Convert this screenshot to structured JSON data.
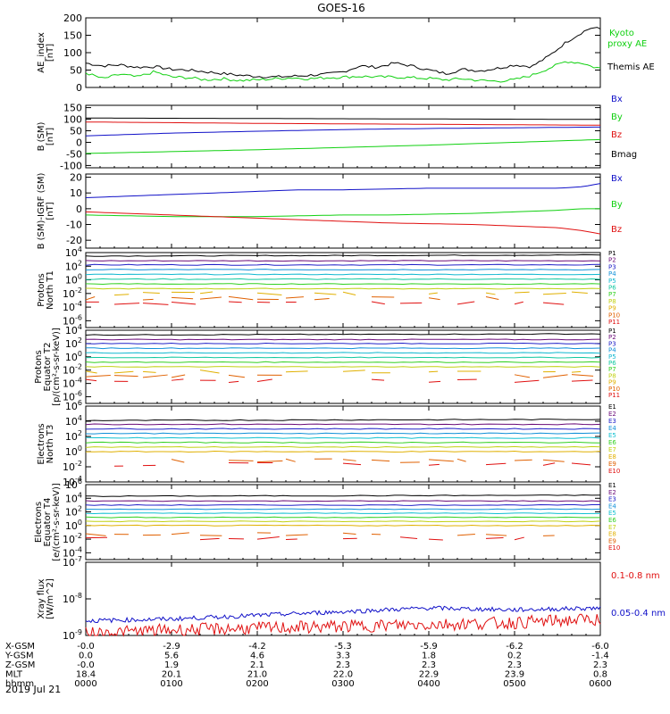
{
  "figure": {
    "title": "GOES-16",
    "date": "2019 Jul 21"
  },
  "colors": {
    "black": "#000000",
    "blue": "#1010c8",
    "green": "#10d010",
    "red": "#e01010",
    "p_colors": [
      "#000000",
      "#6a0a78",
      "#2020c8",
      "#1090d8",
      "#10b8d0",
      "#10c8a0",
      "#30d020",
      "#c0d010",
      "#e0b000",
      "#e06000",
      "#e01010"
    ],
    "e_colors": [
      "#000000",
      "#6a0a78",
      "#2020c8",
      "#1090d8",
      "#10c0d0",
      "#30d020",
      "#c0d010",
      "#e0b000",
      "#e06000",
      "#e01010"
    ]
  },
  "x_axis": {
    "rows": [
      {
        "label": "X-GSM",
        "values": [
          "-0.0",
          "-2.9",
          "-4.2",
          "-5.3",
          "-5.9",
          "-6.2",
          "-6.0"
        ]
      },
      {
        "label": "Y-GSM",
        "values": [
          "0.0",
          "5.6",
          "4.6",
          "3.3",
          "1.8",
          "0.2",
          "-1.4"
        ]
      },
      {
        "label": "Z-GSM",
        "values": [
          "-0.0",
          "1.9",
          "2.1",
          "2.3",
          "2.3",
          "2.3",
          "2.3"
        ]
      },
      {
        "label": "MLT",
        "values": [
          "18.4",
          "20.1",
          "21.0",
          "22.0",
          "22.9",
          "23.9",
          "0.8"
        ]
      },
      {
        "label": "hhmm",
        "values": [
          "0000",
          "0100",
          "0200",
          "0300",
          "0400",
          "0500",
          "0600"
        ]
      }
    ]
  },
  "chart_data": [
    {
      "type": "line",
      "ylabel": "AE_index [nT]",
      "yscale": "linear",
      "ylim": [
        0,
        200
      ],
      "yticks": [
        "0",
        "50",
        "100",
        "150",
        "200"
      ],
      "xlim": [
        0,
        6
      ],
      "legend": [
        "Kyoto proxy AE",
        "Themis AE"
      ],
      "series": [
        {
          "name": "Themis AE",
          "color_key": "black",
          "x": [
            0,
            0.2,
            0.4,
            0.6,
            0.8,
            1.0,
            1.2,
            1.4,
            1.6,
            1.8,
            2.0,
            2.2,
            2.4,
            2.6,
            2.8,
            3.0,
            3.2,
            3.4,
            3.6,
            3.8,
            4.0,
            4.2,
            4.4,
            4.6,
            4.8,
            5.0,
            5.2,
            5.4,
            5.6,
            5.8,
            5.9,
            6.0
          ],
          "values": [
            70,
            62,
            65,
            58,
            60,
            52,
            50,
            45,
            40,
            35,
            32,
            30,
            32,
            35,
            38,
            45,
            62,
            58,
            70,
            62,
            50,
            40,
            52,
            48,
            55,
            65,
            60,
            90,
            130,
            160,
            172,
            168
          ]
        },
        {
          "name": "Kyoto proxy AE",
          "color_key": "green",
          "x": [
            0,
            0.2,
            0.4,
            0.6,
            0.8,
            1.0,
            1.2,
            1.4,
            1.6,
            1.8,
            2.0,
            2.2,
            2.4,
            2.6,
            2.8,
            3.0,
            3.2,
            3.4,
            3.6,
            3.8,
            4.0,
            4.2,
            4.4,
            4.6,
            4.8,
            5.0,
            5.2,
            5.4,
            5.6,
            5.8,
            5.9,
            6.0
          ],
          "values": [
            42,
            25,
            38,
            30,
            45,
            30,
            28,
            22,
            25,
            20,
            22,
            25,
            28,
            25,
            28,
            30,
            32,
            30,
            30,
            28,
            26,
            22,
            25,
            20,
            18,
            22,
            35,
            55,
            75,
            70,
            60,
            55
          ]
        }
      ]
    },
    {
      "type": "line",
      "ylabel": "B (SM) [nT]",
      "yscale": "linear",
      "ylim": [
        -110,
        160
      ],
      "yticks": [
        "-100",
        "-50",
        "0",
        "50",
        "100",
        "150"
      ],
      "xlim": [
        0,
        6
      ],
      "legend": [
        "Bx",
        "By",
        "Bz",
        "Bmag"
      ],
      "series": [
        {
          "name": "Bmag",
          "color_key": "black",
          "x": [
            0,
            1,
            2,
            3,
            4,
            5,
            6
          ],
          "values": [
            105,
            104,
            103,
            102,
            101,
            100,
            99
          ]
        },
        {
          "name": "Bz",
          "color_key": "red",
          "x": [
            0,
            1,
            2,
            3,
            4,
            5,
            6
          ],
          "values": [
            88,
            85,
            82,
            80,
            78,
            76,
            74
          ]
        },
        {
          "name": "Bx",
          "color_key": "blue",
          "x": [
            0,
            1,
            2,
            3,
            4,
            5,
            6
          ],
          "values": [
            28,
            40,
            48,
            55,
            60,
            63,
            66
          ]
        },
        {
          "name": "By",
          "color_key": "green",
          "x": [
            0,
            1,
            2,
            3,
            4,
            5,
            6
          ],
          "values": [
            -48,
            -40,
            -32,
            -22,
            -12,
            0,
            12
          ]
        }
      ]
    },
    {
      "type": "line",
      "ylabel": "B (SM)-IGRF (SM) [nT]",
      "yscale": "linear",
      "ylim": [
        -25,
        22
      ],
      "yticks": [
        "-20",
        "-10",
        "0",
        "10",
        "20"
      ],
      "xlim": [
        0,
        6
      ],
      "legend": [
        "Bx",
        "By",
        "Bz"
      ],
      "series": [
        {
          "name": "Bx",
          "color_key": "blue",
          "x": [
            0,
            0.5,
            1,
            1.5,
            2,
            2.5,
            3,
            3.5,
            4,
            4.5,
            5,
            5.5,
            5.8,
            6
          ],
          "values": [
            7,
            8,
            9,
            10,
            11,
            12,
            12,
            12.5,
            13,
            13,
            13,
            13,
            14,
            16
          ]
        },
        {
          "name": "By",
          "color_key": "green",
          "x": [
            0,
            0.5,
            1,
            1.5,
            2,
            2.5,
            3,
            3.5,
            4,
            4.5,
            5,
            5.5,
            5.8,
            6
          ],
          "values": [
            -4,
            -4.5,
            -5,
            -5,
            -5,
            -4.5,
            -4,
            -4,
            -3.5,
            -3,
            -2,
            -1,
            0,
            0
          ]
        },
        {
          "name": "Bz",
          "color_key": "red",
          "x": [
            0,
            0.5,
            1,
            1.5,
            2,
            2.5,
            3,
            3.5,
            4,
            4.5,
            5,
            5.5,
            5.8,
            6
          ],
          "values": [
            -2,
            -3,
            -4,
            -5,
            -6,
            -7,
            -8,
            -9,
            -9.5,
            -10,
            -11,
            -12,
            -14,
            -16
          ]
        }
      ]
    },
    {
      "type": "line",
      "ylabel": "Protons North T1",
      "yscale": "log",
      "ylim_exp": [
        -7,
        4
      ],
      "ytick_exps": [
        -6,
        -4,
        -2,
        0,
        2,
        4
      ],
      "xlim": [
        0,
        6
      ],
      "legend": [
        "P1",
        "P2",
        "P3",
        "P4",
        "P5",
        "P6",
        "P7",
        "P8",
        "P9",
        "P10",
        "P11"
      ],
      "levels_exp": [
        3.5,
        2.8,
        2.2,
        1.5,
        0.8,
        0.1,
        -0.6,
        -1.3,
        -2.0,
        -2.7,
        -3.4
      ],
      "dashed_from": 8
    },
    {
      "type": "line",
      "ylabel": "Protons Equator T2 [p/(cm²-s-sr-keV)]",
      "yscale": "log",
      "ylim_exp": [
        -7,
        4
      ],
      "ytick_exps": [
        -6,
        -4,
        -2,
        0,
        2,
        4
      ],
      "xlim": [
        0,
        6
      ],
      "legend": [
        "P1",
        "P2",
        "P3",
        "P4",
        "P5",
        "P6",
        "P7",
        "P8",
        "P9",
        "P10",
        "P11"
      ],
      "levels_exp": [
        3.3,
        2.6,
        2.0,
        1.3,
        0.6,
        -0.1,
        -0.8,
        -1.5,
        -2.2,
        -2.9,
        -3.6
      ],
      "dashed_from": 8
    },
    {
      "type": "line",
      "ylabel": "Electrons North T3",
      "yscale": "log",
      "ylim_exp": [
        -4,
        6
      ],
      "ytick_exps": [
        -4,
        -2,
        0,
        2,
        4,
        6
      ],
      "xlim": [
        0,
        6
      ],
      "legend": [
        "E1",
        "E2",
        "E3",
        "E4",
        "E5",
        "E6",
        "E7",
        "E8",
        "E9",
        "E10"
      ],
      "levels_exp": [
        4.1,
        3.6,
        3.0,
        2.4,
        1.8,
        1.2,
        0.6,
        0.0,
        -1.2,
        -1.7
      ],
      "dashed_from": 8
    },
    {
      "type": "line",
      "ylabel": "Electrons Equator T4 [e/(cm²-s-sr-keV)]",
      "yscale": "log",
      "ylim_exp": [
        -5,
        6
      ],
      "ytick_exps": [
        -4,
        -2,
        0,
        2,
        4,
        6
      ],
      "xlim": [
        0,
        6
      ],
      "legend": [
        "E1",
        "E2",
        "E3",
        "E4",
        "E5",
        "E6",
        "E7",
        "E8",
        "E9",
        "E10"
      ],
      "levels_exp": [
        4.3,
        3.6,
        3.0,
        2.4,
        1.8,
        1.2,
        0.6,
        0.0,
        -1.3,
        -1.9
      ],
      "dashed_from": 8
    },
    {
      "type": "line",
      "ylabel": "Xray flux [W/m^2]",
      "yscale": "log",
      "ylim_exp": [
        -9,
        -7
      ],
      "ytick_exps": [
        -9,
        -8,
        -7
      ],
      "xlim": [
        0,
        6
      ],
      "legend": [
        "0.1-0.8 nm",
        "0.05-0.4 nm"
      ],
      "series": [
        {
          "name": "0.05-0.4 nm",
          "color_key": "blue",
          "x": [
            0,
            1,
            2,
            3,
            4,
            5,
            6
          ],
          "values_exp": [
            -8.6,
            -8.55,
            -8.45,
            -8.35,
            -8.25,
            -8.3,
            -8.25
          ]
        },
        {
          "name": "0.1-0.8 nm",
          "color_key": "red",
          "x": [
            0,
            1,
            2,
            3,
            4,
            5,
            6
          ],
          "values_exp": [
            -8.95,
            -8.85,
            -8.8,
            -8.75,
            -8.7,
            -8.65,
            -8.55
          ]
        }
      ]
    }
  ]
}
